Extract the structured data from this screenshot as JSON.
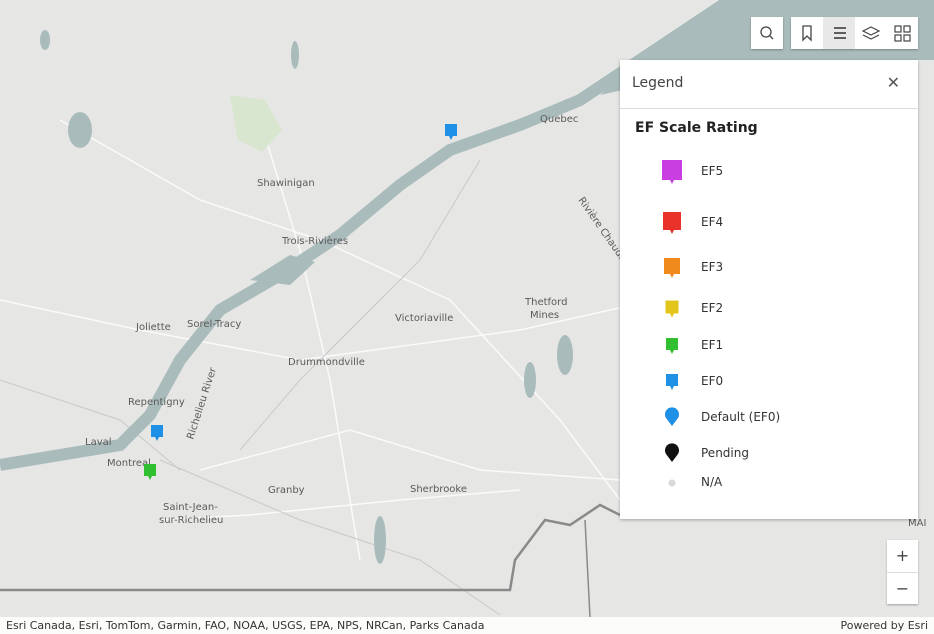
{
  "map": {
    "labels": [
      "Quebec",
      "Shawinigan",
      "Trois-Rivières",
      "Joliette",
      "Sorel-Tracy",
      "Victoriaville",
      "Thetford",
      "Mines",
      "Drummondville",
      "Repentigny",
      "Laval",
      "Montreal",
      "Saint-Jean-",
      "sur-Richelieu",
      "Granby",
      "Sherbrooke",
      "Richelieu River",
      "Rivière Chaudière",
      "MAI"
    ]
  },
  "legend": {
    "title": "Legend",
    "layer_title": "EF Scale Rating",
    "items": [
      {
        "label": "EF5",
        "color": "#c83ee0"
      },
      {
        "label": "EF4",
        "color": "#e8322a"
      },
      {
        "label": "EF3",
        "color": "#f08a1c"
      },
      {
        "label": "EF2",
        "color": "#e3c619"
      },
      {
        "label": "EF1",
        "color": "#2fbf2f"
      },
      {
        "label": "EF0",
        "color": "#1e90e6"
      },
      {
        "label": "Default (EF0)",
        "color": "#1e90e6"
      },
      {
        "label": "Pending",
        "color": "#111111"
      },
      {
        "label": "N/A",
        "color": "#d8d8d8"
      }
    ]
  },
  "zoom": {
    "in": "+",
    "out": "−"
  },
  "attribution": "Esri Canada, Esri, TomTom, Garmin, FAO, NOAA, USGS, EPA, NPS, NRCan, Parks Canada",
  "powered_by": "Powered by Esri"
}
